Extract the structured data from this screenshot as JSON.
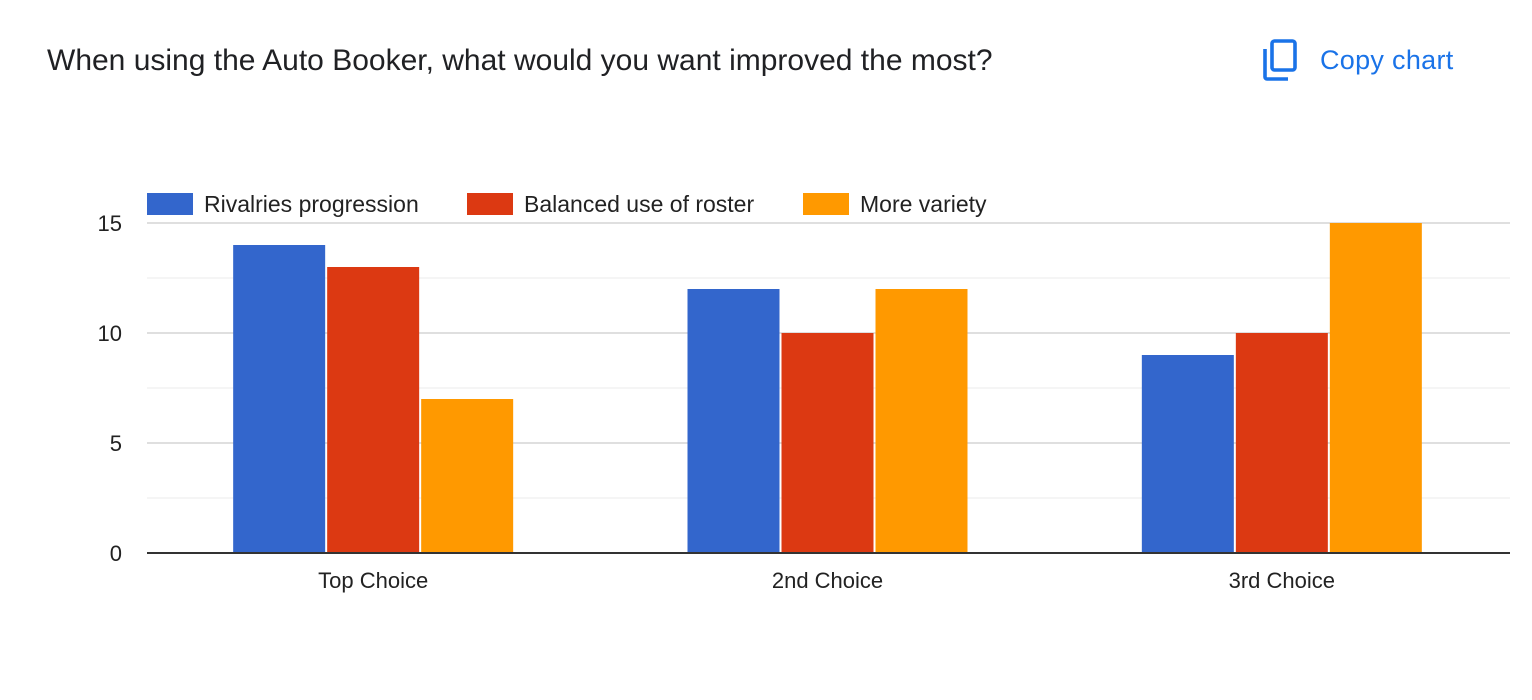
{
  "title": "When using the Auto Booker, what would you want improved the most?",
  "copy_button": {
    "label": "Copy chart",
    "icon": "copy-icon"
  },
  "colors": {
    "accent": "#1a73e8",
    "series": [
      "#3366cc",
      "#dc3912",
      "#ff9900"
    ]
  },
  "chart_data": {
    "type": "bar",
    "title": "When using the Auto Booker, what would you want improved the most?",
    "xlabel": "",
    "ylabel": "",
    "categories": [
      "Top Choice",
      "2nd Choice",
      "3rd Choice"
    ],
    "series": [
      {
        "name": "Rivalries progression",
        "values": [
          14,
          12,
          9
        ]
      },
      {
        "name": "Balanced use of roster",
        "values": [
          13,
          10,
          10
        ]
      },
      {
        "name": "More variety",
        "values": [
          7,
          12,
          15
        ]
      }
    ],
    "ylim": [
      0,
      15
    ],
    "yticks": [
      0,
      5,
      10,
      15
    ],
    "grid": true,
    "legend": "top-left"
  }
}
